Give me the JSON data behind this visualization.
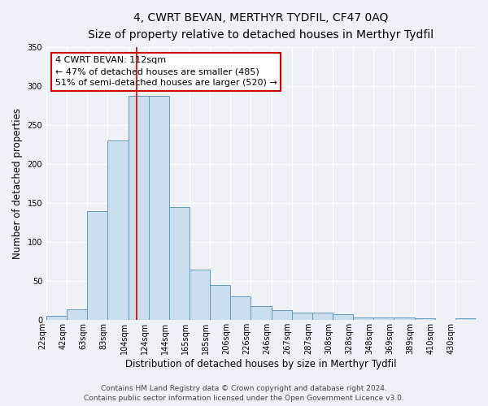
{
  "title": "4, CWRT BEVAN, MERTHYR TYDFIL, CF47 0AQ",
  "subtitle": "Size of property relative to detached houses in Merthyr Tydfil",
  "xlabel": "Distribution of detached houses by size in Merthyr Tydfil",
  "ylabel": "Number of detached properties",
  "bar_labels": [
    "22sqm",
    "42sqm",
    "63sqm",
    "83sqm",
    "104sqm",
    "124sqm",
    "144sqm",
    "165sqm",
    "185sqm",
    "206sqm",
    "226sqm",
    "246sqm",
    "267sqm",
    "287sqm",
    "308sqm",
    "328sqm",
    "348sqm",
    "369sqm",
    "389sqm",
    "410sqm",
    "430sqm"
  ],
  "bar_heights": [
    5,
    14,
    140,
    230,
    287,
    287,
    145,
    65,
    45,
    30,
    18,
    13,
    10,
    10,
    8,
    3,
    3,
    3,
    2,
    0,
    2
  ],
  "bar_color": "#ccdded",
  "bar_edge_color": "#6699bb",
  "vline_x_idx": 4.4,
  "ylim": [
    0,
    350
  ],
  "yticks": [
    0,
    50,
    100,
    150,
    200,
    250,
    300,
    350
  ],
  "annotation_title": "4 CWRT BEVAN: 112sqm",
  "annotation_line1": "← 47% of detached houses are smaller (485)",
  "annotation_line2": "51% of semi-detached houses are larger (520) →",
  "annotation_box_color": "#ffffff",
  "annotation_box_edge_color": "#cc0000",
  "footer1": "Contains HM Land Registry data © Crown copyright and database right 2024.",
  "footer2": "Contains public sector information licensed under the Open Government Licence v3.0.",
  "bg_color": "#eef2f7",
  "grid_color": "#ffffff",
  "title_fontsize": 10,
  "subtitle_fontsize": 9,
  "axis_label_fontsize": 8.5,
  "tick_fontsize": 7,
  "footer_fontsize": 6.5,
  "annotation_fontsize": 8
}
